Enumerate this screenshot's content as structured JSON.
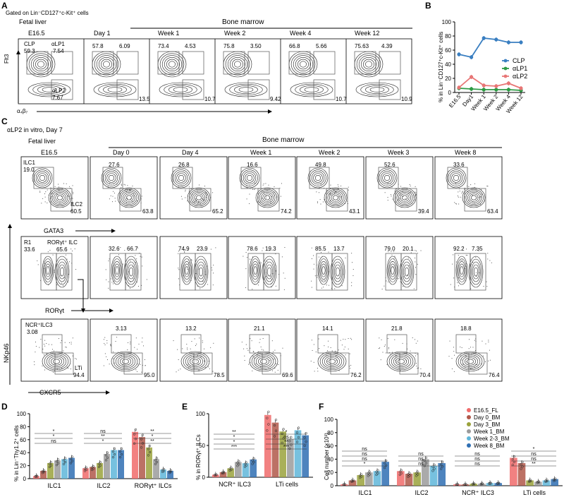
{
  "panelA": {
    "letter": "A",
    "gate": "Gated on Lin⁻CD127⁺c-Kit⁺ cells",
    "fetal": "Fetal liver",
    "bm": "Bone marrow",
    "ylab": "Flt3",
    "xlab": "α₄β₇",
    "cols": [
      "E16.5",
      "Day 1",
      "Week 1",
      "Week 2",
      "Week 4",
      "Week 12"
    ],
    "first": {
      "clp": "CLP",
      "clpv": "59.3",
      "alp1": "αLP1",
      "alp1v": "7.54",
      "alp2": "αLP2",
      "alp2v": "7.67",
      "br": "13.5"
    },
    "rest": [
      {
        "tl": "57.8",
        "tr": "6.09",
        "br": "13.5"
      },
      {
        "tl": "73.4",
        "tr": "4.53",
        "br": "10.7"
      },
      {
        "tl": "75.8",
        "tr": "3.50",
        "br": "9.42"
      },
      {
        "tl": "66.8",
        "tr": "5.66",
        "br": "10.7"
      },
      {
        "tl": "75.63",
        "tr": "4.39",
        "br": "10.9"
      }
    ]
  },
  "panelB": {
    "letter": "B",
    "ylabel": "% in Lin⁻CD127⁺c-Kit⁺ cells",
    "legend_colors": {
      "CLP": "#3a7fc1",
      "αLP1": "#2e9a45",
      "αLP2": "#e87676"
    }
  },
  "chart_data": {
    "type": "line",
    "categories": [
      "E16.5",
      "Day1",
      "Week 1",
      "Week 2",
      "Week 4",
      "Week 12"
    ],
    "ylim": [
      0,
      100
    ],
    "yticks": [
      0,
      20,
      40,
      60,
      80,
      100
    ],
    "ylabel": "% in Lin⁻CD127⁺c-Kit⁺ cells",
    "series": [
      {
        "name": "CLP",
        "color": "#3a7fc1",
        "values": [
          54,
          50,
          77,
          75,
          71,
          71
        ]
      },
      {
        "name": "αLP1",
        "color": "#2e9a45",
        "values": [
          6,
          5,
          4,
          4,
          4,
          3
        ]
      },
      {
        "name": "αLP2",
        "color": "#e87676",
        "values": [
          7,
          22,
          10,
          9,
          13,
          6
        ]
      }
    ]
  },
  "panelC": {
    "letter": "C",
    "title": "αLP2 in vitro, Day 7",
    "fetal": "Fetal liver",
    "bm": "Bone marrow",
    "cols": [
      "E16.5",
      "Day 0",
      "Day 4",
      "Week 1",
      "Week 2",
      "Week 3",
      "Week 8"
    ],
    "r1first": {
      "ilc1": "ILC1",
      "ilc1v": "19.0",
      "ilc2": "ILC2",
      "ilc2v": "60.5"
    },
    "r1": [
      {
        "tl": "27.6",
        "br": "63.8"
      },
      {
        "tl": "26.8",
        "br": "65.2"
      },
      {
        "tl": "16.6",
        "br": "74.2"
      },
      {
        "tl": "49.8",
        "br": "43.1"
      },
      {
        "tl": "52.6",
        "br": "39.4"
      },
      {
        "tl": "33.6",
        "br": "63.4"
      }
    ],
    "r1x": "GATA3",
    "r2first": {
      "r1": "R1",
      "r1v": "33.6",
      "ror": "RORγt⁺ ILC",
      "rorv": "65.6"
    },
    "r2": [
      {
        "a": "32.6",
        "b": "66.7"
      },
      {
        "a": "74.9",
        "b": "23.9"
      },
      {
        "a": "78.6",
        "b": "19.3"
      },
      {
        "a": "85.5",
        "b": "13.7"
      },
      {
        "a": "79.0",
        "b": "20.1"
      },
      {
        "a": "92.2",
        "b": "7.35"
      }
    ],
    "r2x": "RORγt",
    "r3first": {
      "ncr": "NCR⁺ILC3",
      "ncrv": "3.08",
      "lti": "LTi",
      "ltiv": "94.4"
    },
    "r3": [
      {
        "tl": "3.13",
        "br": "95.0"
      },
      {
        "tl": "13.2",
        "br": "78.5"
      },
      {
        "tl": "21.1",
        "br": "69.6"
      },
      {
        "tl": "14.1",
        "br": "76.2"
      },
      {
        "tl": "21.8",
        "br": "70.4"
      },
      {
        "tl": "18.8",
        "br": "76.4"
      }
    ],
    "yaxis": "NKp46",
    "xaxis": "CXCR5"
  },
  "panelD": {
    "letter": "D",
    "ylabel": "% in Lin⁻Thy1.2⁺ cells",
    "yticks": [
      "0",
      "20",
      "40",
      "60",
      "80",
      "100"
    ],
    "groups": [
      "ILC1",
      "ILC2",
      "RORγt⁺ ILCs"
    ]
  },
  "panelE": {
    "letter": "E",
    "ylabel": "% in RORγt⁺ ILCs",
    "yticks": [
      "0",
      "50",
      "100"
    ],
    "groups": [
      "NCR⁺ ILC3",
      "LTi cells"
    ]
  },
  "panelF": {
    "letter": "F",
    "ylabel": "Cell number (×10³)",
    "yticks": [
      "0",
      "20",
      "40",
      "60",
      "80",
      "100"
    ],
    "groups": [
      "ILC1",
      "ILC2",
      "NCR⁺ ILC3",
      "LTi cells"
    ],
    "legend": [
      "E16.5_FL",
      "Day 0_BM",
      "Day 3_BM",
      "Week 1_BM",
      "Week 2-3_BM",
      "Week 8_BM"
    ],
    "colors": [
      "#f06b6b",
      "#b0584a",
      "#9aa23c",
      "#9b9b9b",
      "#5fb6d9",
      "#2f6fb3"
    ]
  },
  "sig": {
    "ns": "ns",
    "s1": "*",
    "s2": "**",
    "s3": "***"
  }
}
